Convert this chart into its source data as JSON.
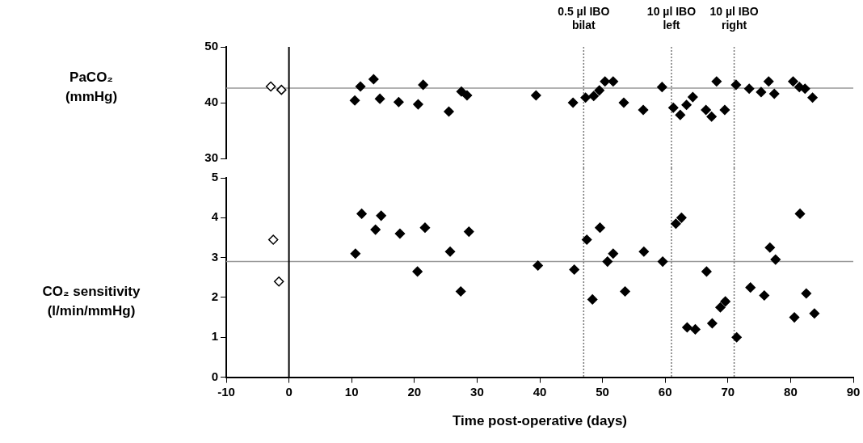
{
  "chart_data": [
    {
      "type": "scatter",
      "ylabel": "PaCO₂\n(mmHg)",
      "xlim": [
        -10,
        90
      ],
      "ylim": [
        30,
        50
      ],
      "yticks": [
        30,
        40,
        50
      ],
      "tick_labels": "y",
      "grid": false,
      "legend": false,
      "marker": "diamond",
      "ref_lines": [
        {
          "axis": "y",
          "value": 42.6,
          "color": "#999999",
          "line_style": "solid"
        },
        {
          "axis": "x",
          "value": 0,
          "color": "#000000",
          "line_style": "solid"
        },
        {
          "axis": "x",
          "value": 47,
          "label": "0.5 µl IBO\nbilat",
          "color": "#777777",
          "line_style": "dotted"
        },
        {
          "axis": "x",
          "value": 61,
          "label": "10 µl IBO\nleft",
          "color": "#777777",
          "line_style": "dotted"
        },
        {
          "axis": "x",
          "value": 71,
          "label": "10 µl IBO\nright",
          "color": "#777777",
          "line_style": "dotted"
        }
      ],
      "series": [
        {
          "color": "#ffffff",
          "x": [
            -2.9,
            -1.2
          ],
          "values": [
            42.9,
            42.3
          ]
        },
        {
          "color": "#000000",
          "x": [
            10.5,
            11.4,
            13.5,
            14.5,
            17.5,
            20.6,
            21.4,
            25.5,
            27.5,
            28.4,
            39.4,
            45.3,
            47.3,
            48.6,
            49.5,
            50.4,
            51.7,
            53.4,
            56.5,
            59.5,
            61.3,
            62.4,
            63.4,
            64.4,
            66.5,
            67.4,
            68.2,
            69.5,
            71.3,
            73.4,
            75.3,
            76.5,
            77.4,
            80.4,
            81.4,
            82.3,
            83.5
          ],
          "values": [
            40.4,
            42.9,
            44.2,
            40.7,
            40.1,
            39.7,
            43.2,
            38.4,
            42.0,
            41.3,
            41.3,
            40.0,
            40.9,
            41.2,
            42.2,
            43.8,
            43.8,
            40.0,
            38.7,
            42.8,
            39.1,
            37.8,
            39.6,
            41.0,
            38.7,
            37.5,
            43.8,
            38.7,
            43.2,
            42.5,
            41.9,
            43.8,
            41.6,
            43.8,
            42.8,
            42.5,
            40.9
          ]
        }
      ]
    },
    {
      "type": "scatter",
      "ylabel": "CO₂ sensitivity\n(l/min/mmHg)",
      "xlabel": "Time post-operative (days)",
      "xlim": [
        -10,
        90
      ],
      "xticks": [
        -10,
        0,
        10,
        20,
        30,
        40,
        50,
        60,
        70,
        80,
        90
      ],
      "ylim": [
        0,
        5
      ],
      "yticks": [
        0,
        1,
        2,
        3,
        4,
        5
      ],
      "grid": false,
      "legend": false,
      "marker": "diamond",
      "ref_lines": [
        {
          "axis": "y",
          "value": 2.9,
          "color": "#999999",
          "line_style": "solid"
        },
        {
          "axis": "x",
          "value": 0,
          "color": "#000000",
          "line_style": "solid"
        },
        {
          "axis": "x",
          "value": 47,
          "color": "#777777",
          "line_style": "dotted"
        },
        {
          "axis": "x",
          "value": 61,
          "color": "#777777",
          "line_style": "dotted"
        },
        {
          "axis": "x",
          "value": 71,
          "color": "#777777",
          "line_style": "dotted"
        }
      ],
      "series": [
        {
          "color": "#ffffff",
          "x": [
            -2.5,
            -1.6
          ],
          "values": [
            3.45,
            2.4
          ]
        },
        {
          "color": "#000000",
          "x": [
            10.6,
            11.6,
            13.8,
            14.7,
            17.7,
            20.5,
            21.7,
            25.7,
            27.4,
            28.7,
            39.7,
            45.5,
            47.5,
            48.4,
            49.6,
            50.8,
            51.7,
            53.6,
            56.6,
            59.6,
            61.7,
            62.6,
            63.5,
            64.8,
            66.6,
            67.5,
            68.8,
            69.6,
            71.4,
            73.6,
            75.8,
            76.7,
            77.6,
            80.6,
            81.5,
            82.5,
            83.8
          ],
          "values": [
            3.1,
            4.1,
            3.7,
            4.05,
            3.6,
            2.65,
            3.75,
            3.15,
            2.15,
            3.65,
            2.8,
            2.7,
            3.45,
            1.95,
            3.75,
            2.9,
            3.1,
            2.15,
            3.15,
            2.9,
            3.85,
            4.0,
            1.25,
            1.2,
            2.65,
            1.35,
            1.75,
            1.9,
            1.0,
            2.25,
            2.05,
            3.25,
            2.95,
            1.5,
            4.1,
            2.1,
            1.6
          ]
        }
      ]
    }
  ]
}
